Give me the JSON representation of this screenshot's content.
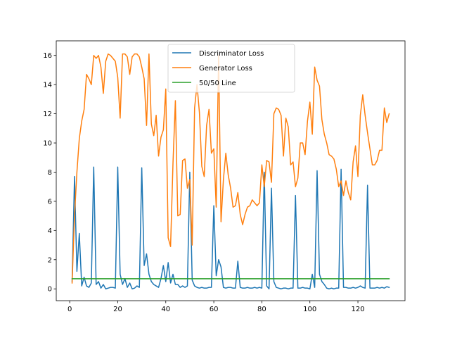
{
  "chart_data": {
    "type": "line",
    "title": "",
    "xlabel": "",
    "ylabel": "",
    "xlim": [
      -5.6,
      139.6
    ],
    "ylim": [
      -0.81,
      17.0
    ],
    "xticks": [
      0,
      20,
      40,
      60,
      80,
      100,
      120
    ],
    "yticks": [
      0,
      2,
      4,
      6,
      8,
      10,
      12,
      14,
      16
    ],
    "grid": false,
    "legend_position": "top-center",
    "series": [
      {
        "name": "Discriminator Loss",
        "color": "#1f77b4",
        "x": [
          1,
          2,
          3,
          4,
          5,
          6,
          7,
          8,
          9,
          10,
          11,
          12,
          13,
          14,
          15,
          16,
          17,
          18,
          19,
          20,
          21,
          22,
          23,
          24,
          25,
          26,
          27,
          28,
          29,
          30,
          31,
          32,
          33,
          34,
          35,
          36,
          37,
          38,
          39,
          40,
          41,
          42,
          43,
          44,
          45,
          46,
          47,
          48,
          49,
          50,
          51,
          52,
          53,
          54,
          55,
          56,
          57,
          58,
          59,
          60,
          61,
          62,
          63,
          64,
          65,
          66,
          67,
          68,
          69,
          70,
          71,
          72,
          73,
          74,
          75,
          76,
          77,
          78,
          79,
          80,
          81,
          82,
          83,
          84,
          85,
          86,
          87,
          88,
          89,
          90,
          91,
          92,
          93,
          94,
          95,
          96,
          97,
          98,
          99,
          100,
          101,
          102,
          103,
          104,
          105,
          106,
          107,
          108,
          109,
          110,
          111,
          112,
          113,
          114,
          115,
          116,
          117,
          118,
          119,
          120,
          121,
          122,
          123,
          124,
          125,
          126,
          127,
          128,
          129,
          130,
          131,
          132,
          133
        ],
        "values": [
          0.5,
          7.7,
          1.2,
          3.8,
          0.2,
          0.8,
          0.2,
          0.1,
          0.4,
          8.35,
          0.3,
          0.5,
          0.05,
          0.3,
          0.0,
          0.05,
          0.1,
          0.1,
          0.05,
          8.35,
          1.0,
          0.3,
          0.7,
          0.1,
          0.4,
          0.0,
          0.05,
          0.2,
          0.1,
          8.3,
          1.6,
          2.4,
          1.0,
          0.5,
          0.3,
          0.2,
          0.1,
          0.7,
          1.6,
          0.5,
          1.8,
          0.4,
          1.0,
          0.3,
          0.3,
          0.1,
          0.2,
          0.1,
          0.2,
          8.0,
          0.6,
          0.2,
          0.1,
          0.05,
          0.1,
          0.05,
          0.05,
          0.1,
          0.1,
          5.7,
          0.9,
          2.0,
          1.5,
          0.1,
          0.05,
          0.1,
          0.1,
          0.05,
          0.05,
          1.9,
          0.1,
          0.05,
          0.05,
          0.1,
          0.05,
          0.05,
          0.1,
          0.05,
          0.1,
          0.05,
          8.0,
          0.2,
          0.0,
          6.9,
          0.5,
          0.1,
          0.05,
          0.0,
          0.05,
          0.05,
          0.0,
          0.05,
          0.05,
          6.4,
          0.05,
          0.05,
          0.1,
          0.05,
          0.05,
          0.0,
          1.0,
          0.1,
          8.1,
          1.0,
          0.5,
          0.3,
          0.05,
          0.0,
          0.05,
          0.0,
          0.05,
          0.05,
          8.2,
          0.1,
          0.1,
          0.05,
          0.05,
          0.1,
          0.05,
          0.1,
          0.2,
          0.1,
          0.05,
          7.1,
          0.05,
          0.05,
          0.05,
          0.1,
          0.05,
          0.1,
          0.05,
          0.15,
          0.1
        ]
      },
      {
        "name": "Generator Loss",
        "color": "#ff7f0e",
        "x": [
          1,
          2,
          3,
          4,
          5,
          6,
          7,
          8,
          9,
          10,
          11,
          12,
          13,
          14,
          15,
          16,
          17,
          18,
          19,
          20,
          21,
          22,
          23,
          24,
          25,
          26,
          27,
          28,
          29,
          30,
          31,
          32,
          33,
          34,
          35,
          36,
          37,
          38,
          39,
          40,
          41,
          42,
          43,
          44,
          45,
          46,
          47,
          48,
          49,
          50,
          51,
          52,
          53,
          54,
          55,
          56,
          57,
          58,
          59,
          60,
          61,
          62,
          63,
          64,
          65,
          66,
          67,
          68,
          69,
          70,
          71,
          72,
          73,
          74,
          75,
          76,
          77,
          78,
          79,
          80,
          81,
          82,
          83,
          84,
          85,
          86,
          87,
          88,
          89,
          90,
          91,
          92,
          93,
          94,
          95,
          96,
          97,
          98,
          99,
          100,
          101,
          102,
          103,
          104,
          105,
          106,
          107,
          108,
          109,
          110,
          111,
          112,
          113,
          114,
          115,
          116,
          117,
          118,
          119,
          120,
          121,
          122,
          123,
          124,
          125,
          126,
          127,
          128,
          129,
          130,
          131,
          132,
          133
        ],
        "values": [
          0.4,
          5.0,
          8.0,
          10.3,
          11.5,
          12.3,
          14.7,
          14.4,
          14.0,
          16.0,
          15.8,
          16.0,
          15.2,
          13.4,
          15.6,
          16.1,
          16.0,
          15.8,
          15.6,
          14.5,
          11.7,
          16.1,
          16.1,
          15.9,
          14.7,
          15.9,
          16.1,
          16.1,
          15.9,
          15.2,
          14.4,
          11.2,
          16.1,
          11.3,
          10.5,
          11.9,
          9.1,
          10.4,
          10.9,
          13.7,
          3.5,
          2.9,
          8.6,
          12.9,
          5.0,
          5.1,
          8.8,
          8.9,
          6.9,
          7.5,
          3.0,
          12.4,
          14.0,
          12.1,
          8.4,
          7.7,
          11.2,
          12.3,
          9.3,
          9.6,
          5.6,
          16.0,
          4.6,
          7.5,
          9.3,
          7.8,
          6.9,
          5.6,
          5.7,
          6.6,
          5.1,
          4.4,
          5.1,
          5.6,
          5.7,
          6.1,
          5.9,
          5.7,
          5.9,
          8.5,
          7.0,
          8.8,
          8.7,
          7.3,
          12.0,
          12.4,
          12.3,
          11.9,
          9.1,
          11.7,
          11.1,
          8.5,
          8.7,
          7.0,
          7.6,
          10.0,
          10.0,
          9.2,
          11.5,
          12.8,
          10.6,
          15.2,
          14.3,
          13.9,
          11.6,
          10.6,
          10.0,
          9.2,
          9.1,
          8.9,
          8.2,
          7.0,
          7.4,
          6.4,
          7.4,
          6.6,
          6.1,
          8.7,
          9.8,
          7.7,
          11.9,
          13.3,
          11.9,
          10.7,
          9.6,
          8.5,
          8.5,
          8.8,
          9.5,
          9.5,
          12.4,
          11.4,
          12.0
        ]
      },
      {
        "name": "50/50 Line",
        "color": "#2ca02c",
        "x": [
          1,
          133
        ],
        "values": [
          0.693,
          0.693
        ]
      }
    ]
  }
}
